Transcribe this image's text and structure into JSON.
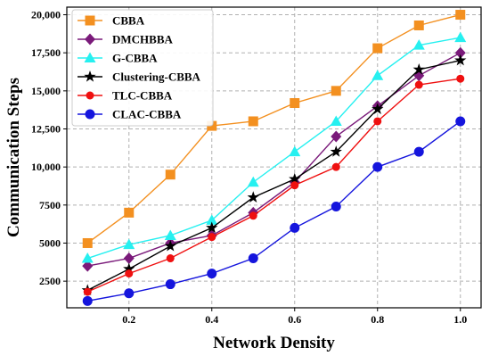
{
  "chart_data": {
    "type": "line",
    "xlabel": "Network Density",
    "ylabel": "Communication Steps",
    "x": [
      0.1,
      0.2,
      0.3,
      0.4,
      0.5,
      0.6,
      0.7,
      0.8,
      0.9,
      1.0
    ],
    "xlim": [
      0.05,
      1.05
    ],
    "ylim": [
      750,
      20500
    ],
    "xticks": [
      0.2,
      0.4,
      0.6,
      0.8,
      1.0
    ],
    "xtick_labels": [
      "0.2",
      "0.4",
      "0.6",
      "0.8",
      "1.0"
    ],
    "yticks": [
      2500,
      5000,
      7500,
      10000,
      12500,
      15000,
      17500,
      20000
    ],
    "ytick_labels": [
      "2500",
      "5000",
      "7500",
      "10,000",
      "12,500",
      "15,000",
      "17,500",
      "20,000"
    ],
    "grid": true,
    "legend_position": "top-left",
    "series": [
      {
        "name": "CBBA",
        "color": "#f39020",
        "marker": "square",
        "values": [
          5000,
          7000,
          9500,
          12700,
          13000,
          14200,
          15000,
          17800,
          19300,
          20000
        ]
      },
      {
        "name": "DMCHBBA",
        "color": "#7a1a7a",
        "marker": "diamond",
        "values": [
          3500,
          4000,
          5000,
          5500,
          7000,
          9000,
          12000,
          14000,
          16000,
          17500
        ]
      },
      {
        "name": "G-CBBA",
        "color": "#26f0f0",
        "marker": "triangle",
        "values": [
          4000,
          4900,
          5500,
          6500,
          9000,
          11000,
          13000,
          16000,
          18000,
          18500
        ]
      },
      {
        "name": "Clustering-CBBA",
        "color": "#000000",
        "marker": "star",
        "values": [
          1900,
          3300,
          4800,
          6000,
          8000,
          9200,
          11000,
          13800,
          16400,
          17000
        ]
      },
      {
        "name": "TLC-CBBA",
        "color": "#ef1010",
        "marker": "circle",
        "values": [
          1800,
          3000,
          4000,
          5400,
          6800,
          8800,
          10000,
          13000,
          15400,
          15800
        ]
      },
      {
        "name": "CLAC-CBBA",
        "color": "#1515dd",
        "marker": "circle-big",
        "values": [
          1200,
          1700,
          2300,
          3000,
          4000,
          6000,
          7400,
          10000,
          11000,
          13000
        ]
      }
    ]
  }
}
